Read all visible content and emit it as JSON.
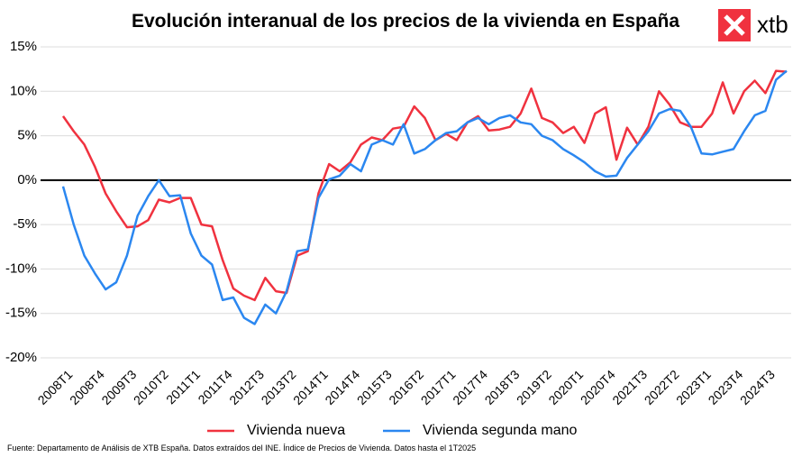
{
  "chart_data": {
    "type": "line",
    "title": "Evolución interanual de los precios de la vivienda en España",
    "logo": "xtb",
    "source": "Fuente: Departamento de Análisis de XTB España. Datos extraídos del INE. Índice de Precios de Vivienda. Datos hasta el 1T2025",
    "categories": [
      "2008T1",
      null,
      null,
      "2008T4",
      null,
      null,
      "2009T3",
      null,
      null,
      "2010T2",
      null,
      null,
      "2011T1",
      null,
      null,
      "2011T4",
      null,
      null,
      "2012T3",
      null,
      null,
      "2013T2",
      null,
      null,
      "2014T1",
      null,
      null,
      "2014T4",
      null,
      null,
      "2015T3",
      null,
      null,
      "2016T2",
      null,
      null,
      "2017T1",
      null,
      null,
      "2017T4",
      null,
      null,
      "2018T3",
      null,
      null,
      "2019T2",
      null,
      null,
      "2020T1",
      null,
      null,
      "2020T4",
      null,
      null,
      "2021T3",
      null,
      null,
      "2022T2",
      null,
      null,
      "2023T1",
      null,
      null,
      "2023T4",
      null,
      null,
      "2024T3",
      null,
      null
    ],
    "series": [
      {
        "name": "Vivienda nueva",
        "color": "#f0323f",
        "values": [
          7.2,
          5.5,
          4,
          1.5,
          -1.5,
          -3.5,
          -5.3,
          -5.2,
          -4.5,
          -2.2,
          -2.5,
          -2,
          -2,
          -5,
          -5.2,
          -9,
          -12.2,
          -13,
          -13.5,
          -11,
          -12.5,
          -12.7,
          -8.5,
          -8,
          -1.5,
          1.8,
          1,
          2,
          4,
          4.8,
          4.5,
          5.8,
          6,
          8.3,
          7,
          4.5,
          5.2,
          4.5,
          6.5,
          7.2,
          5.6,
          5.7,
          6,
          7.5,
          10.3,
          7,
          6.5,
          5.3,
          6,
          4.2,
          7.5,
          8.2,
          2.3,
          5.9,
          4,
          6,
          10,
          8.5,
          6.5,
          6,
          6,
          7.5,
          11,
          7.5,
          10,
          11.2,
          9.8,
          12.3,
          12.2
        ]
      },
      {
        "name": "Vivienda segunda mano",
        "color": "#2b87f0",
        "values": [
          -0.7,
          -5,
          -8.5,
          -10.5,
          -12.3,
          -11.5,
          -8.5,
          -4,
          -1.8,
          0,
          -1.8,
          -1.7,
          -6,
          -8.5,
          -9.5,
          -13.5,
          -13.2,
          -15.5,
          -16.2,
          -14,
          -15,
          -12.5,
          -8,
          -7.8,
          -2,
          0.1,
          0.5,
          1.8,
          1,
          4,
          4.5,
          4,
          6.3,
          3,
          3.5,
          4.5,
          5.3,
          5.5,
          6.5,
          7,
          6.3,
          7,
          7.3,
          6.5,
          6.3,
          5,
          4.5,
          3.5,
          2.8,
          2,
          1,
          0.4,
          0.5,
          2.5,
          4,
          5.5,
          7.5,
          8,
          7.8,
          6,
          3,
          2.9,
          3.2,
          3.5,
          5.5,
          7.3,
          7.8,
          11.3,
          12.3
        ]
      }
    ],
    "ylim": [
      -20,
      15
    ],
    "yticks": [
      {
        "value": -20,
        "label": "-20%"
      },
      {
        "value": -15,
        "label": "-15%"
      },
      {
        "value": -10,
        "label": "-10%"
      },
      {
        "value": -5,
        "label": "-5%"
      },
      {
        "value": 0,
        "label": "0%"
      },
      {
        "value": 5,
        "label": "5%"
      },
      {
        "value": 10,
        "label": "10%"
      },
      {
        "value": 15,
        "label": "15%"
      }
    ],
    "grid": true,
    "legend": "bottom"
  }
}
